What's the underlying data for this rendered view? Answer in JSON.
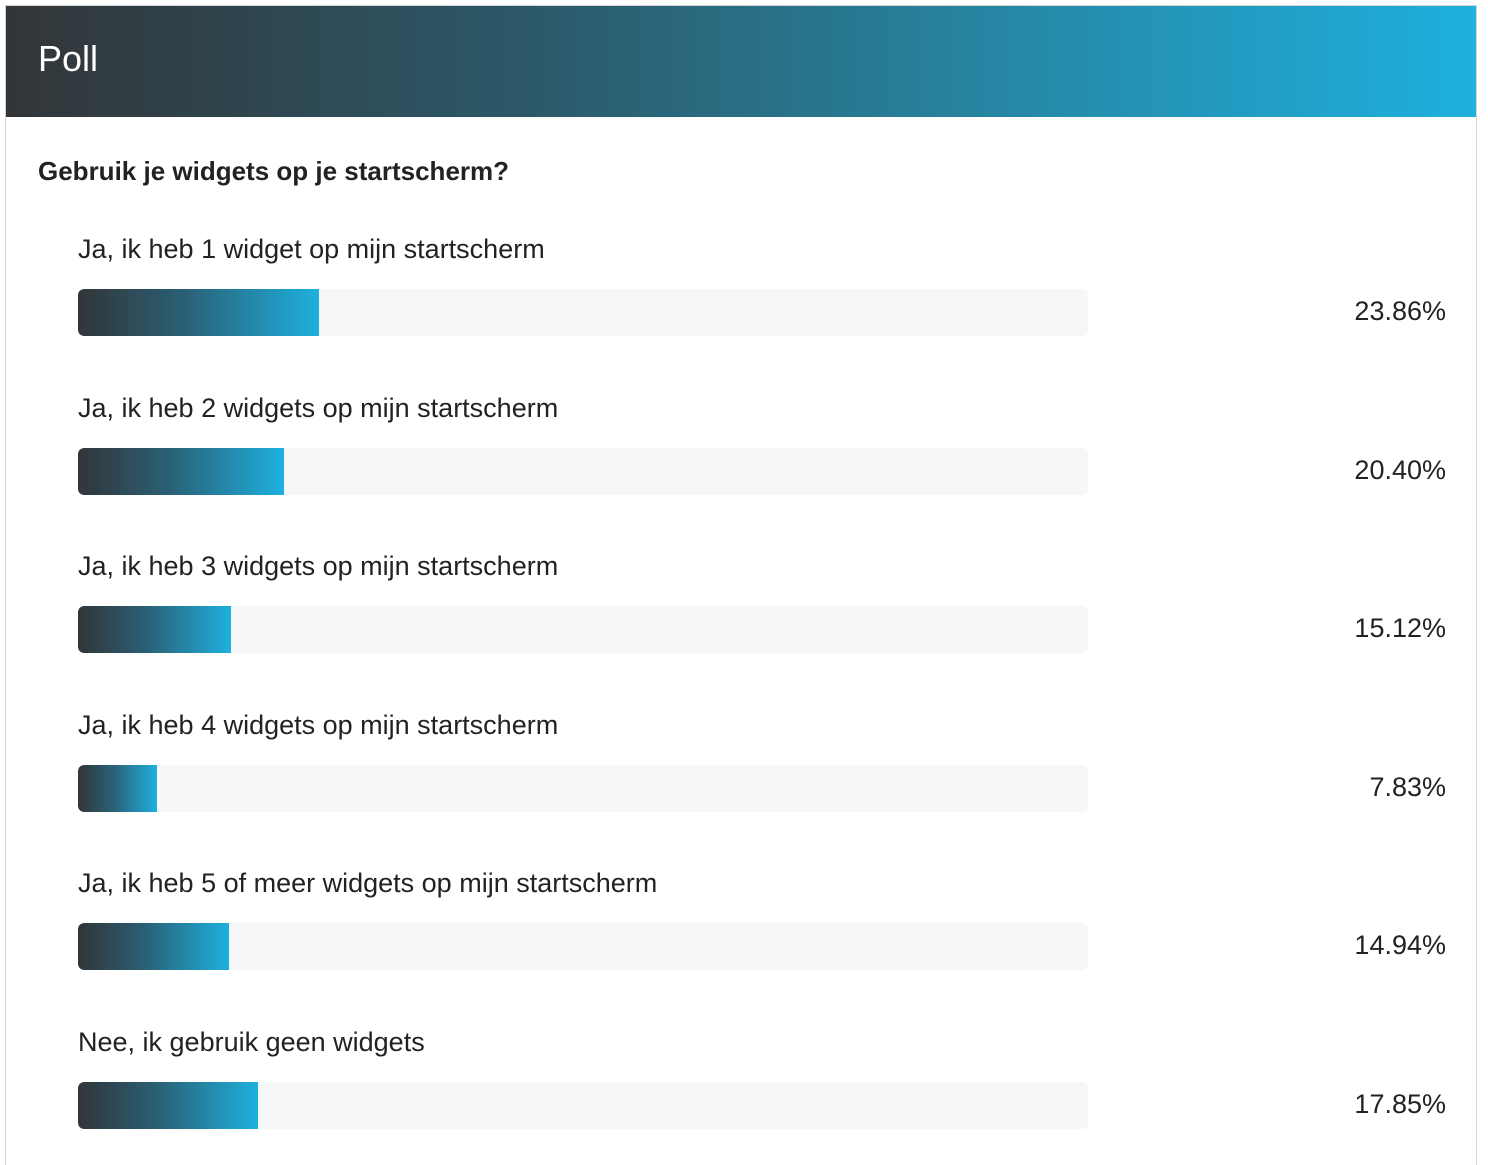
{
  "header": {
    "title": "Poll"
  },
  "poll": {
    "question": "Gebruik je widgets op je startscherm?",
    "options": [
      {
        "label": "Ja, ik heb 1 widget op mijn startscherm",
        "percent_text": "23.86%",
        "percent": 23.86
      },
      {
        "label": "Ja, ik heb 2 widgets op mijn startscherm",
        "percent_text": "20.40%",
        "percent": 20.4
      },
      {
        "label": "Ja, ik heb 3 widgets op mijn startscherm",
        "percent_text": "15.12%",
        "percent": 15.12
      },
      {
        "label": "Ja, ik heb 4 widgets op mijn startscherm",
        "percent_text": "7.83%",
        "percent": 7.83
      },
      {
        "label": "Ja, ik heb 5 of meer widgets op mijn startscherm",
        "percent_text": "14.94%",
        "percent": 14.94
      },
      {
        "label": "Nee, ik gebruik geen widgets",
        "percent_text": "17.85%",
        "percent": 17.85
      }
    ]
  },
  "colors": {
    "header_gradient_start": "#323538",
    "header_gradient_end": "#1eb0de",
    "bar_track": "#f6f7f9",
    "text": "#222222"
  }
}
